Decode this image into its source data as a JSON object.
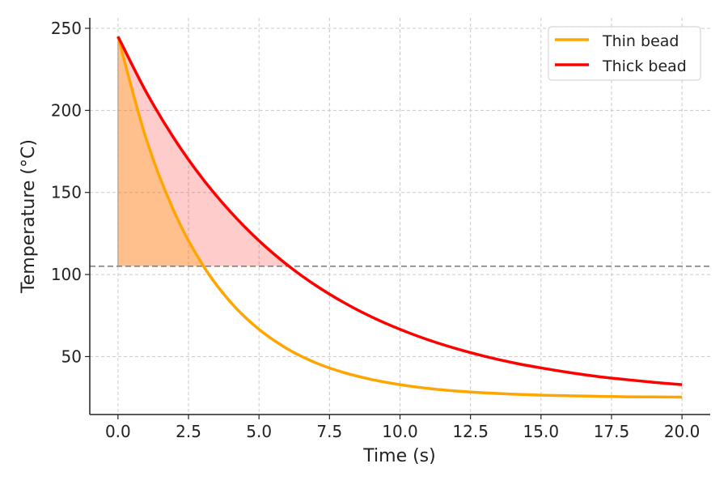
{
  "chart_data": {
    "type": "line",
    "title": "",
    "xlabel": "Time (s)",
    "ylabel": "Temperature (°C)",
    "xlim": [
      -1,
      21
    ],
    "ylim": [
      14.7,
      256.4
    ],
    "grid": true,
    "legend_placement": "top-right",
    "xticks": [
      0,
      2.5,
      5,
      7.5,
      10,
      12.5,
      15,
      17.5,
      20
    ],
    "xtick_labels": [
      "0.0",
      "2.5",
      "5.0",
      "7.5",
      "10.0",
      "12.5",
      "15.0",
      "17.5",
      "20.0"
    ],
    "yticks": [
      50,
      100,
      150,
      200,
      250
    ],
    "ytick_labels": [
      "50",
      "100",
      "150",
      "200",
      "250"
    ],
    "threshold": 105,
    "x": [
      0,
      1,
      2,
      3,
      4,
      5,
      6,
      7,
      8,
      9,
      10,
      11,
      12,
      13,
      14,
      15,
      16,
      17,
      18,
      19,
      20
    ],
    "series": [
      {
        "name": "Thin bead",
        "color": "#FFA500",
        "values": [
          245,
          182.6,
          138.0,
          105.9,
          83.0,
          66.6,
          54.8,
          46.3,
          40.3,
          36.0,
          32.9,
          30.6,
          29.0,
          27.9,
          27.1,
          26.5,
          26.1,
          25.8,
          25.5,
          25.4,
          25.3
        ]
      },
      {
        "name": "Thick bead",
        "color": "#FF0000",
        "values": [
          245,
          211.2,
          182.6,
          158.4,
          138.0,
          120.6,
          105.9,
          93.5,
          83.0,
          74.1,
          66.6,
          60.2,
          54.8,
          50.2,
          46.3,
          43.1,
          40.3,
          37.9,
          36.0,
          34.3,
          32.9
        ]
      }
    ]
  }
}
